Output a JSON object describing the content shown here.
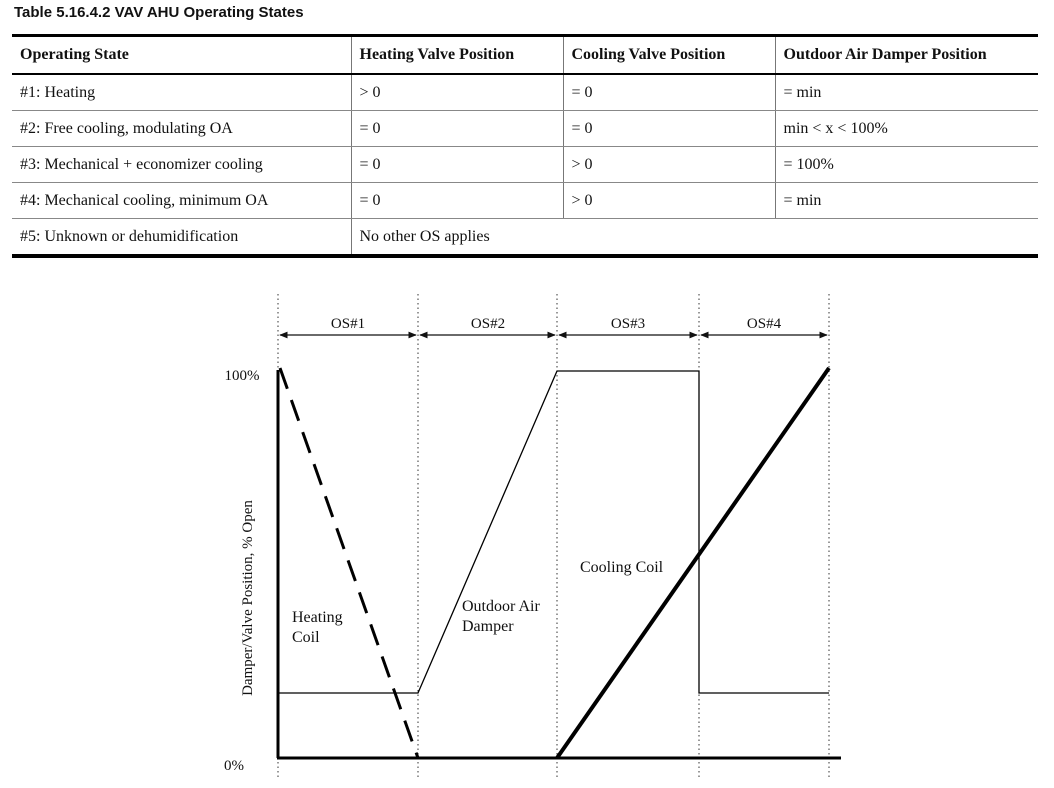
{
  "caption": "Table 5.16.4.2  VAV AHU Operating States",
  "table": {
    "headers": [
      "Operating State",
      "Heating Valve Position",
      "Cooling Valve Position",
      "Outdoor Air Damper Position"
    ],
    "rows": [
      [
        "#1: Heating",
        "> 0",
        "= 0",
        "= min"
      ],
      [
        "#2: Free cooling, modulating OA",
        "= 0",
        "= 0",
        "min < x < 100%"
      ],
      [
        "#3: Mechanical + economizer cooling",
        "= 0",
        "> 0",
        "= 100%"
      ],
      [
        "#4: Mechanical cooling, minimum OA",
        "= 0",
        "> 0",
        "= min"
      ]
    ],
    "last_row": [
      "#5: Unknown or dehumidification",
      "No other OS applies"
    ]
  },
  "figure": {
    "regions": [
      "OS#1",
      "OS#2",
      "OS#3",
      "OS#4"
    ],
    "y_axis_label": "Damper/Valve Position, % Open",
    "y_top_label": "100%",
    "y_bottom_label": "0%",
    "curves": {
      "heating_coil": [
        "Heating",
        "Coil"
      ],
      "outdoor_air_damper": [
        "Outdoor Air",
        "Damper"
      ],
      "cooling_coil": "Cooling Coil"
    }
  }
}
